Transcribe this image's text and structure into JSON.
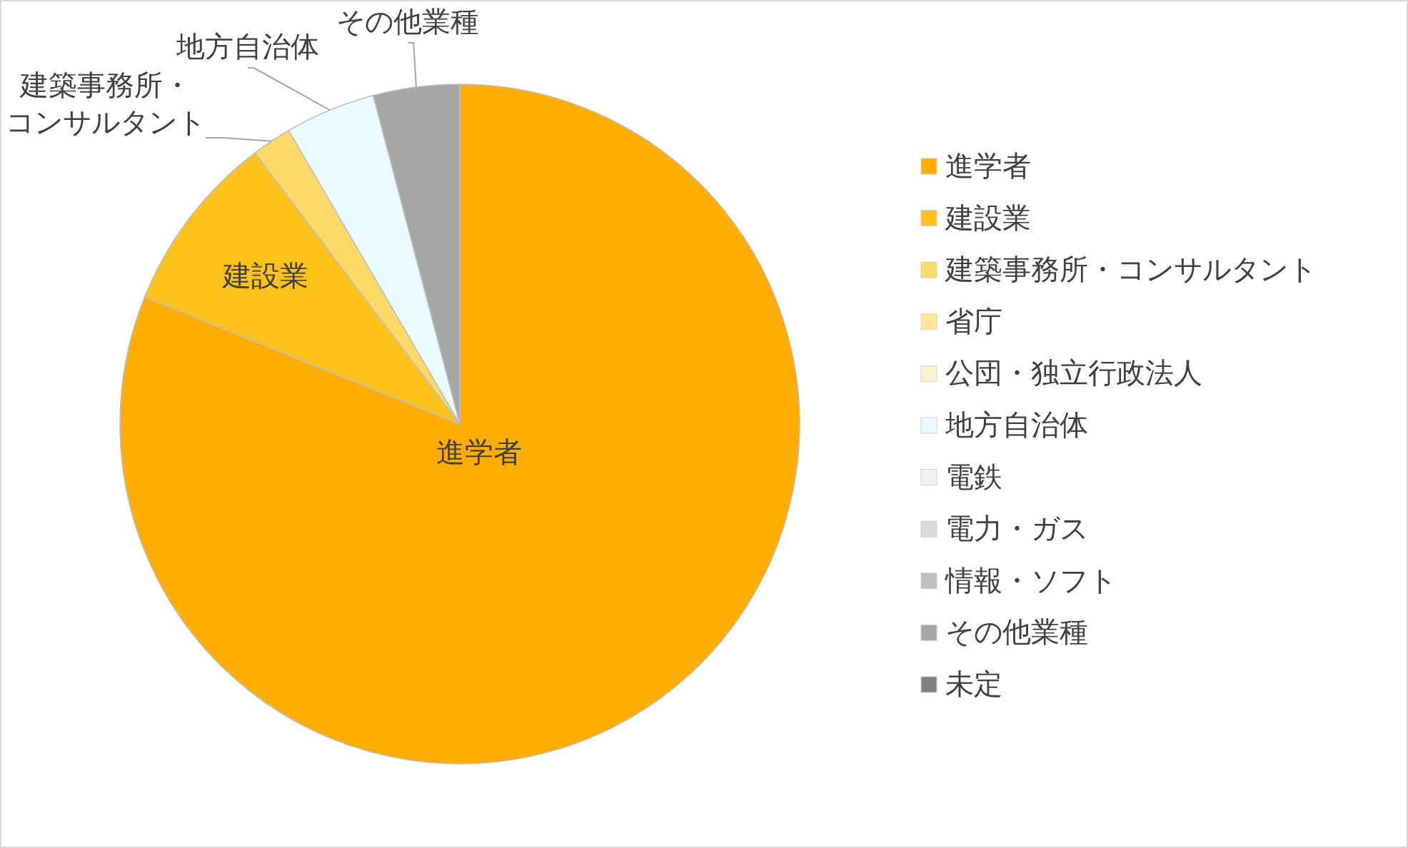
{
  "chart_data": {
    "type": "pie",
    "categories": [
      "進学者",
      "建設業",
      "建築事務所・コンサルタント",
      "省庁",
      "公団・独立行政法人",
      "地方自治体",
      "電鉄",
      "電力・ガス",
      "情報・ソフト",
      "その他業種",
      "未定"
    ],
    "values": [
      81.1,
      8.6,
      1.9,
      0,
      0,
      4.3,
      0,
      0,
      0,
      4.1,
      0
    ],
    "colors": [
      "#ffad00",
      "#ffc21a",
      "#ffd966",
      "#ffe699",
      "#fff2cc",
      "#e8fcff",
      "#f2f2f2",
      "#d9d9d9",
      "#bfbfbf",
      "#a6a6a6",
      "#7f7f7f"
    ],
    "legend": "right"
  }
}
